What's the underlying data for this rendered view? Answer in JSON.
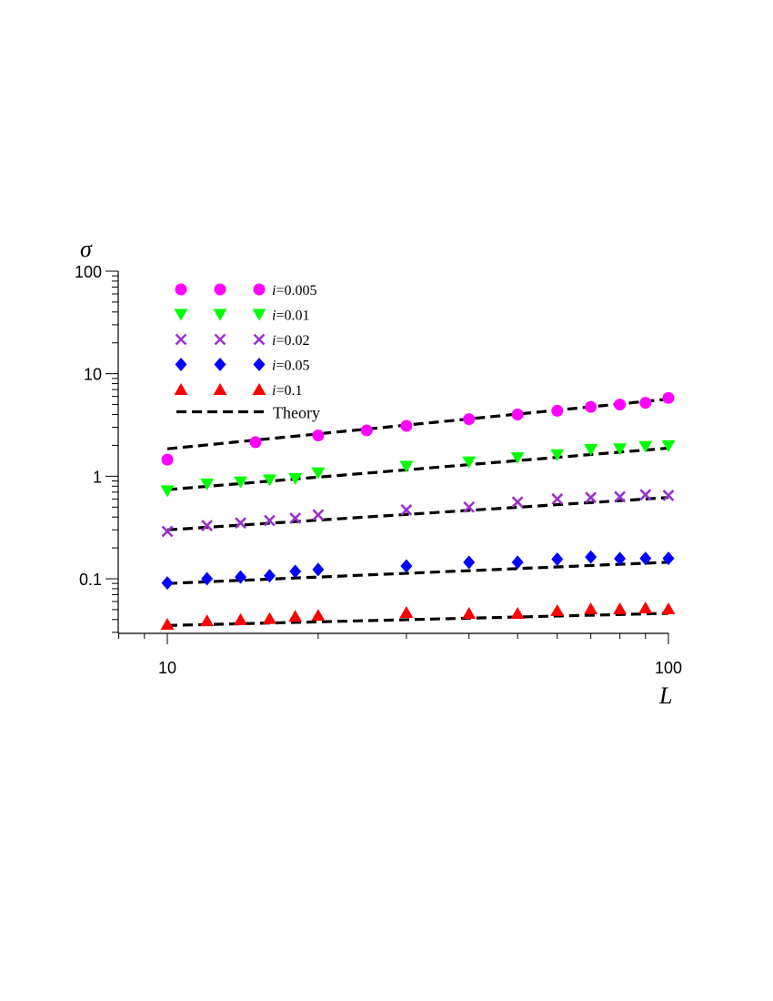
{
  "chart_data": {
    "type": "scatter",
    "xscale": "log",
    "yscale": "log",
    "xlim": [
      7,
      110
    ],
    "ylim": [
      0.03,
      100
    ],
    "xlabel": "L",
    "ylabel": "σ",
    "xticks": [
      "10",
      "100"
    ],
    "yticks": [
      "100",
      "10",
      "1",
      "0.1"
    ],
    "grid": false,
    "legend_position": "top-left",
    "series": [
      {
        "name": "i=0.005",
        "prefix": "i",
        "suffix": "=0.005",
        "marker": "circle",
        "color": "#ff00ff",
        "x": [
          10,
          15,
          20,
          25,
          30,
          40,
          50,
          60,
          70,
          80,
          90,
          100
        ],
        "y": [
          1.45,
          2.15,
          2.5,
          2.8,
          3.1,
          3.6,
          4.0,
          4.35,
          4.75,
          5.0,
          5.2,
          5.8
        ]
      },
      {
        "name": "i=0.01",
        "prefix": "i",
        "suffix": "=0.01",
        "marker": "triangle-down",
        "color": "#00ff00",
        "x": [
          10,
          12,
          14,
          16,
          18,
          20,
          30,
          40,
          50,
          60,
          70,
          80,
          90,
          100
        ],
        "y": [
          0.72,
          0.84,
          0.88,
          0.92,
          0.95,
          1.08,
          1.25,
          1.38,
          1.52,
          1.62,
          1.82,
          1.85,
          1.95,
          1.98
        ]
      },
      {
        "name": "i=0.02",
        "prefix": "i",
        "suffix": "=0.02",
        "marker": "x",
        "color": "#9933cc",
        "x": [
          10,
          12,
          14,
          16,
          18,
          20,
          30,
          40,
          50,
          60,
          70,
          80,
          90,
          100
        ],
        "y": [
          0.29,
          0.33,
          0.35,
          0.37,
          0.39,
          0.42,
          0.47,
          0.5,
          0.56,
          0.6,
          0.62,
          0.63,
          0.66,
          0.65
        ]
      },
      {
        "name": "i=0.05",
        "prefix": "i",
        "suffix": "=0.05",
        "marker": "diamond",
        "color": "#0000ff",
        "x": [
          10,
          12,
          14,
          16,
          18,
          20,
          30,
          40,
          50,
          60,
          70,
          80,
          90,
          100
        ],
        "y": [
          0.091,
          0.1,
          0.104,
          0.107,
          0.118,
          0.123,
          0.133,
          0.145,
          0.145,
          0.155,
          0.163,
          0.157,
          0.158,
          0.158
        ]
      },
      {
        "name": "i=0.1",
        "prefix": "i",
        "suffix": "=0.1",
        "marker": "triangle-up",
        "color": "#ff0000",
        "x": [
          10,
          12,
          14,
          16,
          18,
          20,
          30,
          40,
          50,
          60,
          70,
          80,
          90,
          100
        ],
        "y": [
          0.036,
          0.039,
          0.04,
          0.041,
          0.043,
          0.044,
          0.047,
          0.046,
          0.046,
          0.049,
          0.051,
          0.051,
          0.052,
          0.051
        ]
      },
      {
        "name": "Theory",
        "prefix": "",
        "suffix": "Theory",
        "marker": "dashed-line",
        "color": "#000000",
        "x": [
          10,
          100
        ],
        "y_curves": [
          [
            1.85,
            5.65
          ],
          [
            0.74,
            1.88
          ],
          [
            0.3,
            0.62
          ],
          [
            0.09,
            0.145
          ],
          [
            0.035,
            0.046
          ]
        ]
      }
    ]
  }
}
